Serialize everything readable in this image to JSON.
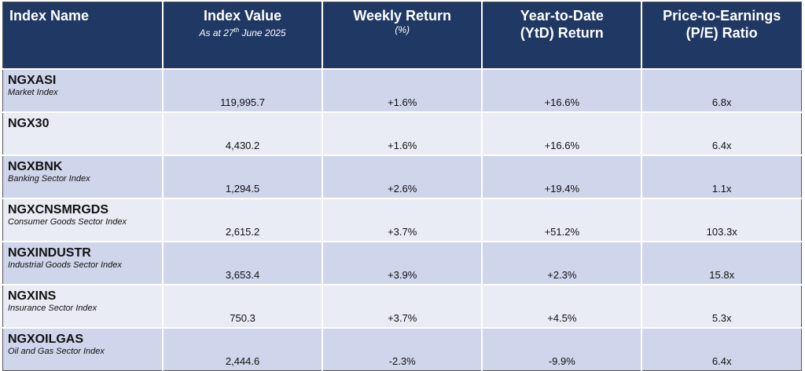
{
  "header": {
    "col0": {
      "title": "Index Name"
    },
    "col1": {
      "title": "Index Value",
      "subtitle": {
        "prefix": "As at 27",
        "sup": "th",
        "suffix": " June 2025"
      }
    },
    "col2": {
      "title": "Weekly Return",
      "subtitle": "(%)"
    },
    "col3": {
      "lines": [
        "Year-to-Date",
        "(YtD) Return"
      ]
    },
    "col4": {
      "lines": [
        "Price-to-Earnings",
        "(P/E) Ratio"
      ]
    }
  },
  "table": {
    "rows": [
      {
        "name": "NGXASI",
        "description": "Market Index",
        "value": "119,995.7",
        "weekly": "+1.6%",
        "ytd": "+16.6%",
        "pe": "6.8x"
      },
      {
        "name": "NGX30",
        "value": "4,430.2",
        "weekly": "+1.6%",
        "ytd": "+16.6%",
        "pe": "6.4x"
      },
      {
        "name": "NGXBNK",
        "description": "Banking Sector Index",
        "value": "1,294.5",
        "weekly": "+2.6%",
        "ytd": "+19.4%",
        "pe": "1.1x"
      },
      {
        "name": "NGXCNSMRGDS",
        "description": "Consumer Goods Sector Index",
        "value": "2,615.2",
        "weekly": "+3.7%",
        "ytd": "+51.2%",
        "pe": "103.3x"
      },
      {
        "name": "NGXINDUSTR",
        "description": "Industrial Goods Sector Index",
        "value": "3,653.4",
        "weekly": "+3.9%",
        "ytd": "+2.3%",
        "pe": "15.8x"
      },
      {
        "name": "NGXINS",
        "description": "Insurance Sector Index",
        "value": "750.3",
        "weekly": "+3.7%",
        "ytd": "+4.5%",
        "pe": "5.3x"
      },
      {
        "name": "NGXOILGAS",
        "description": "Oil and Gas Sector Index",
        "value": "2,444.6",
        "weekly": "-2.3%",
        "ytd": "-9.9%",
        "pe": "6.4x"
      }
    ]
  }
}
